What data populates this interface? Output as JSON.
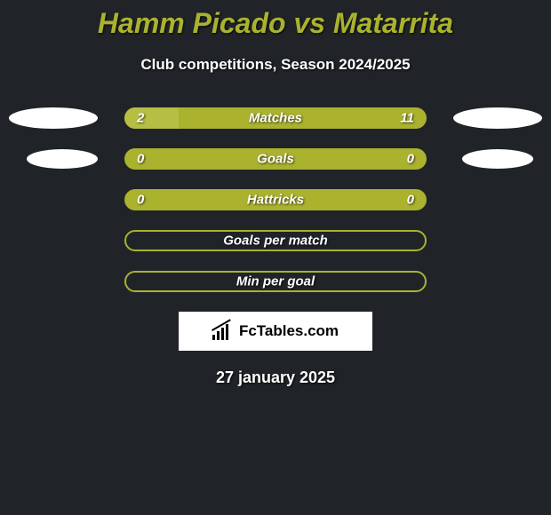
{
  "title": "Hamm Picado vs Matarrita",
  "subtitle": "Club competitions, Season 2024/2025",
  "colors": {
    "background": "#202428",
    "accent": "#aab22e",
    "accent_light": "#b6be44",
    "text": "#ffffff"
  },
  "bars": [
    {
      "label": "Matches",
      "left_value": "2",
      "right_value": "11",
      "left_fill_pct": 18,
      "has_values": true,
      "show_left_ellipse": true,
      "show_right_ellipse": true,
      "ellipse_small": false,
      "hollow": false
    },
    {
      "label": "Goals",
      "left_value": "0",
      "right_value": "0",
      "left_fill_pct": 0,
      "has_values": true,
      "show_left_ellipse": true,
      "show_right_ellipse": true,
      "ellipse_small": true,
      "hollow": false
    },
    {
      "label": "Hattricks",
      "left_value": "0",
      "right_value": "0",
      "left_fill_pct": 0,
      "has_values": true,
      "show_left_ellipse": false,
      "show_right_ellipse": false,
      "ellipse_small": false,
      "hollow": false
    },
    {
      "label": "Goals per match",
      "left_value": "",
      "right_value": "",
      "left_fill_pct": 0,
      "has_values": false,
      "show_left_ellipse": false,
      "show_right_ellipse": false,
      "ellipse_small": false,
      "hollow": true
    },
    {
      "label": "Min per goal",
      "left_value": "",
      "right_value": "",
      "left_fill_pct": 0,
      "has_values": false,
      "show_left_ellipse": false,
      "show_right_ellipse": false,
      "ellipse_small": false,
      "hollow": true
    }
  ],
  "logo_text": "FcTables.com",
  "date": "27 january 2025"
}
